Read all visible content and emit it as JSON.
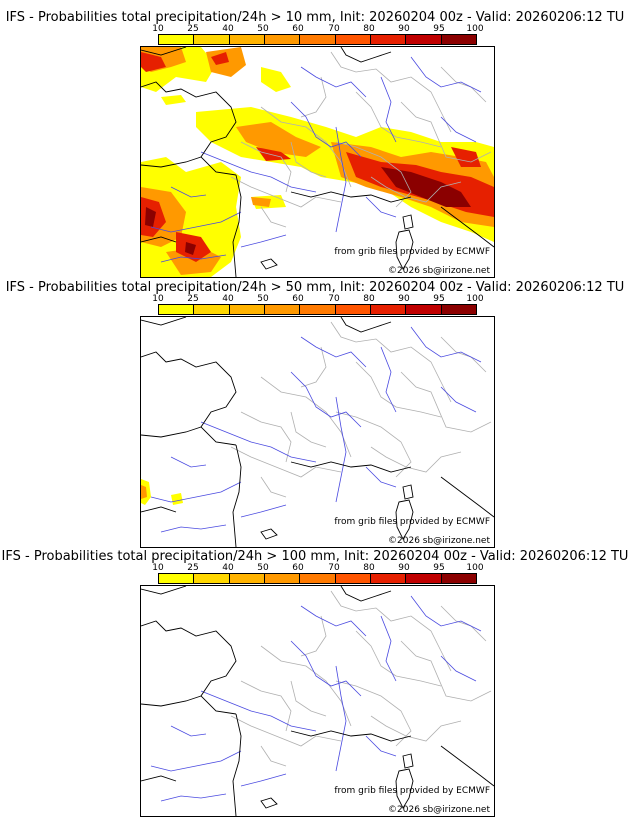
{
  "colorbar": {
    "ticks": [
      "10",
      "25",
      "40",
      "50",
      "60",
      "70",
      "80",
      "90",
      "95",
      "100"
    ],
    "colors": [
      "#ffff00",
      "#ffd700",
      "#ffb300",
      "#ff9900",
      "#ff7a00",
      "#ff5500",
      "#e62000",
      "#c00000",
      "#8b0000",
      "#5a0000"
    ]
  },
  "credits": {
    "source": "from grib files provided by ECMWF",
    "copyright": "©2026 sb@irizone.net"
  },
  "panels": [
    {
      "title": "IFS - Probabilities total precipitation/24h > 10 mm, Init: 20260204 00z - Valid: 20260206:12 TU"
    },
    {
      "title": "IFS - Probabilities total precipitation/24h > 50 mm, Init: 20260204 00z - Valid: 20260206:12 TU"
    },
    {
      "title": "IFS - Probabilities total precipitation/24h > 100 mm, Init: 20260204 00z - Valid: 20260206:12 TU"
    }
  ]
}
